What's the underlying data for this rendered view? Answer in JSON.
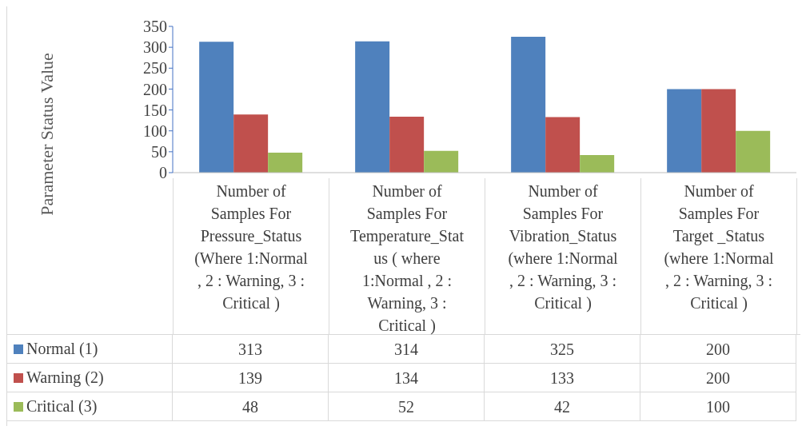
{
  "chart_data": {
    "type": "bar",
    "ylabel": "Parameter Status Value",
    "categories": [
      "Number of Samples For Pressure_Status (Where 1:Normal , 2 : Warning,  3 : Critical )",
      "Number of Samples For Temperature_Status ( where 1:Normal , 2 : Warning,  3 : Critical )",
      "Number of Samples For Vibration_Status (where 1:Normal , 2 : Warning,  3 : Critical )",
      "Number of Samples For Target _Status (where 1:Normal , 2 : Warning,  3 : Critical )"
    ],
    "series": [
      {
        "name": "Normal (1)",
        "color": "#4f81bd",
        "values": [
          313,
          314,
          325,
          200
        ]
      },
      {
        "name": "Warning (2)",
        "color": "#c0504d",
        "values": [
          139,
          134,
          133,
          200
        ]
      },
      {
        "name": "Critical (3)",
        "color": "#9bbb59",
        "values": [
          48,
          52,
          42,
          100
        ]
      }
    ],
    "ylim": [
      0,
      350
    ],
    "yticks": [
      0,
      50,
      100,
      150,
      200,
      250,
      300,
      350
    ],
    "grid": false,
    "legend": "bottom left",
    "data_labels": true
  }
}
